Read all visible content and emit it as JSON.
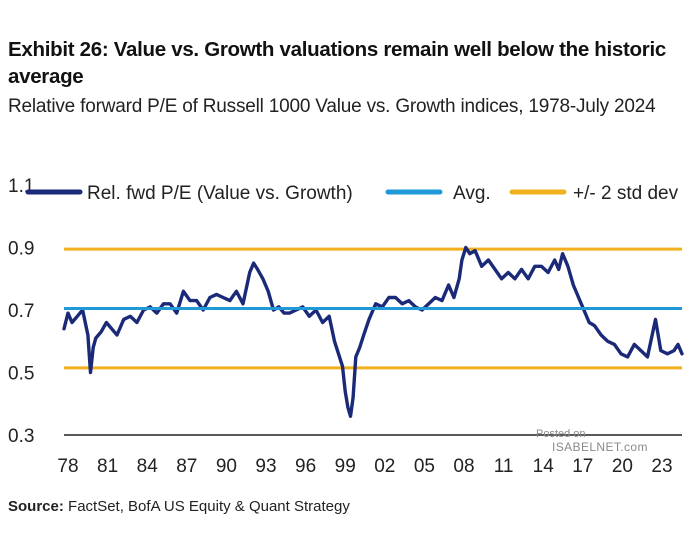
{
  "header": {
    "title": "Exhibit 26: Value vs. Growth valuations remain well below the historic average",
    "subtitle": "Relative forward P/E of Russell 1000 Value vs. Growth indices, 1978-July 2024"
  },
  "source": {
    "label": "Source:",
    "text": "FactSet, BofA US Equity & Quant Strategy"
  },
  "watermark": {
    "line1": "Posted on",
    "line2": "ISABELNET.com"
  },
  "colors": {
    "series": "#1b2a78",
    "avg": "#1f9ad6",
    "std": "#f2b01e",
    "axis": "#222222"
  },
  "chart_data": {
    "type": "line",
    "title": "Relative forward P/E of Russell 1000 Value vs. Growth indices, 1978-July 2024",
    "xlabel": "",
    "ylabel": "",
    "xlim": [
      1978,
      2024.6
    ],
    "ylim": [
      0.3,
      1.1
    ],
    "y_ticks": [
      "0.3",
      "0.5",
      "0.7",
      "0.9",
      "1.1"
    ],
    "x_ticks": [
      "78",
      "81",
      "84",
      "87",
      "90",
      "93",
      "96",
      "99",
      "02",
      "05",
      "08",
      "11",
      "14",
      "17",
      "20",
      "23"
    ],
    "legend": [
      "Rel. fwd P/E (Value vs. Growth)",
      "Avg.",
      "+/- 2 std dev"
    ],
    "legend_position": "top",
    "avg": 0.705,
    "upper_2sd": 0.895,
    "lower_2sd": 0.515,
    "series": [
      {
        "name": "Rel. fwd P/E (Value vs. Growth)",
        "x": [
          1978.0,
          1978.3,
          1978.6,
          1979.0,
          1979.4,
          1979.8,
          1980.0,
          1980.2,
          1980.4,
          1980.8,
          1981.2,
          1981.6,
          1982.0,
          1982.5,
          1983.0,
          1983.5,
          1984.0,
          1984.5,
          1985.0,
          1985.5,
          1986.0,
          1986.5,
          1987.0,
          1987.5,
          1988.0,
          1988.5,
          1989.0,
          1989.5,
          1990.0,
          1990.5,
          1991.0,
          1991.5,
          1992.0,
          1992.3,
          1992.6,
          1993.0,
          1993.4,
          1993.8,
          1994.2,
          1994.6,
          1995.0,
          1995.5,
          1996.0,
          1996.5,
          1997.0,
          1997.5,
          1998.0,
          1998.4,
          1998.7,
          1999.0,
          1999.2,
          1999.4,
          1999.6,
          1999.8,
          2000.0,
          2000.3,
          2000.6,
          2001.0,
          2001.5,
          2002.0,
          2002.5,
          2003.0,
          2003.5,
          2004.0,
          2004.5,
          2005.0,
          2005.5,
          2006.0,
          2006.5,
          2007.0,
          2007.4,
          2007.8,
          2008.0,
          2008.3,
          2008.6,
          2009.0,
          2009.5,
          2010.0,
          2010.5,
          2011.0,
          2011.5,
          2012.0,
          2012.5,
          2013.0,
          2013.5,
          2014.0,
          2014.5,
          2015.0,
          2015.3,
          2015.6,
          2016.0,
          2016.4,
          2016.8,
          2017.2,
          2017.6,
          2018.0,
          2018.5,
          2019.0,
          2019.5,
          2020.0,
          2020.5,
          2021.0,
          2021.5,
          2022.0,
          2022.3,
          2022.6,
          2023.0,
          2023.5,
          2024.0,
          2024.3,
          2024.6
        ],
        "values": [
          0.64,
          0.69,
          0.66,
          0.68,
          0.7,
          0.62,
          0.5,
          0.58,
          0.61,
          0.63,
          0.66,
          0.64,
          0.62,
          0.67,
          0.68,
          0.66,
          0.7,
          0.71,
          0.69,
          0.72,
          0.72,
          0.69,
          0.76,
          0.73,
          0.73,
          0.7,
          0.74,
          0.75,
          0.74,
          0.73,
          0.76,
          0.72,
          0.82,
          0.85,
          0.83,
          0.8,
          0.76,
          0.7,
          0.71,
          0.69,
          0.69,
          0.7,
          0.71,
          0.68,
          0.7,
          0.66,
          0.68,
          0.6,
          0.56,
          0.52,
          0.44,
          0.39,
          0.36,
          0.42,
          0.55,
          0.58,
          0.62,
          0.67,
          0.72,
          0.71,
          0.74,
          0.74,
          0.72,
          0.73,
          0.71,
          0.7,
          0.72,
          0.74,
          0.73,
          0.78,
          0.74,
          0.8,
          0.86,
          0.9,
          0.88,
          0.89,
          0.84,
          0.86,
          0.83,
          0.8,
          0.82,
          0.8,
          0.83,
          0.8,
          0.84,
          0.84,
          0.82,
          0.86,
          0.83,
          0.88,
          0.84,
          0.78,
          0.74,
          0.7,
          0.66,
          0.65,
          0.62,
          0.6,
          0.59,
          0.56,
          0.55,
          0.59,
          0.57,
          0.55,
          0.61,
          0.67,
          0.57,
          0.56,
          0.57,
          0.59,
          0.56
        ]
      }
    ]
  }
}
